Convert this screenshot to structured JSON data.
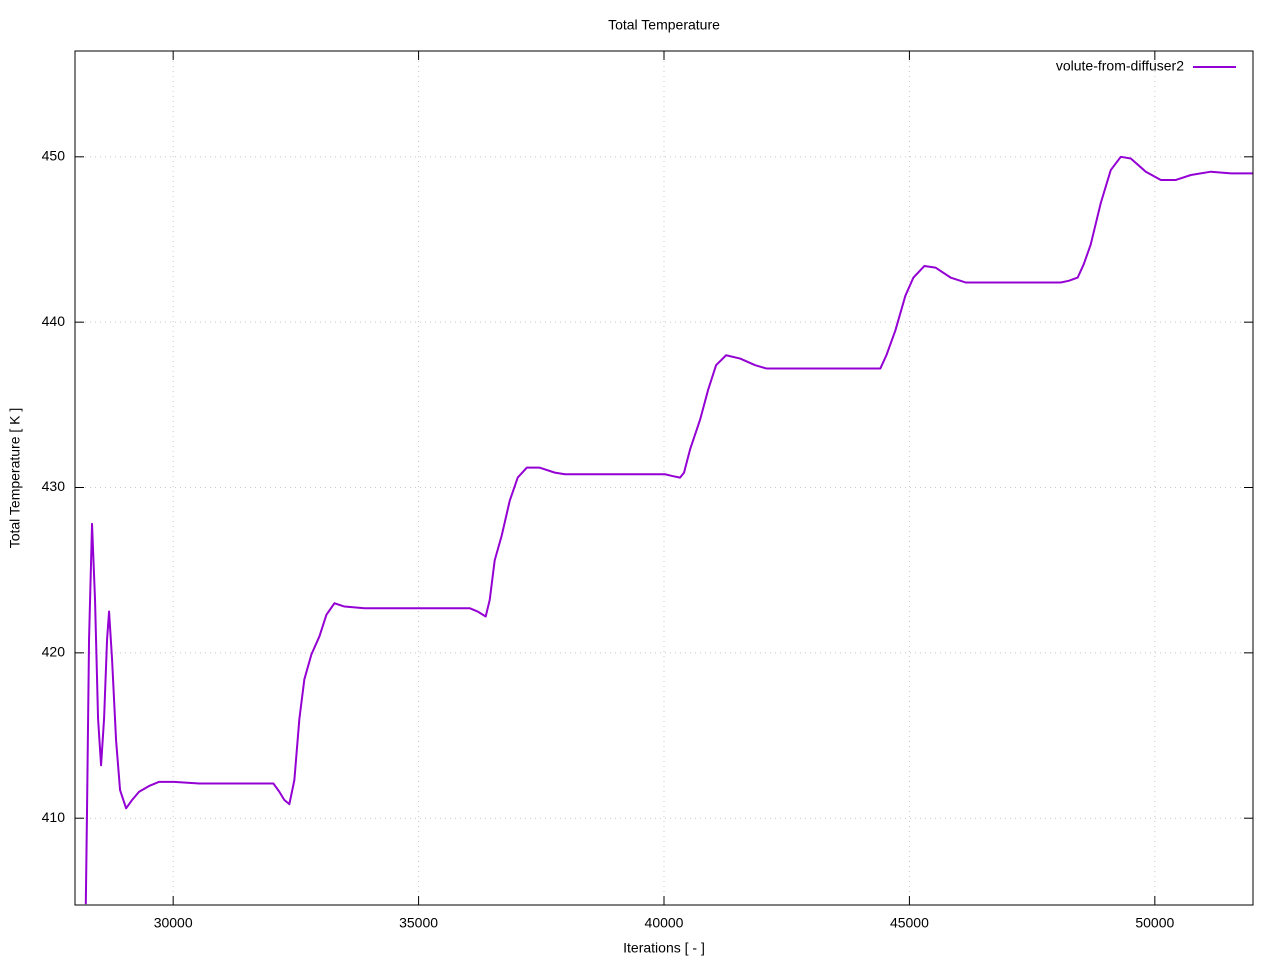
{
  "chart_data": {
    "type": "line",
    "title": "Total Temperature",
    "x_label": "Iterations [ - ]",
    "y_label": "Total Temperature [ K ]",
    "xlim": [
      28000,
      52000
    ],
    "ylim": [
      404.75,
      456.4
    ],
    "xticks": [
      30000,
      35000,
      40000,
      45000,
      50000
    ],
    "yticks": [
      410,
      420,
      430,
      440,
      450
    ],
    "grid": true,
    "legend": "top-right",
    "x": [
      28220,
      28245,
      28286,
      28347,
      28408,
      28470,
      28531,
      28592,
      28653,
      28694,
      28755,
      28837,
      28918,
      29041,
      29163,
      29306,
      29510,
      29714,
      30020,
      30531,
      32041,
      32163,
      32265,
      32367,
      32469,
      32571,
      32673,
      32816,
      32980,
      33122,
      33286,
      33490,
      33898,
      36041,
      36204,
      36367,
      36449,
      36551,
      36694,
      36857,
      37020,
      37204,
      37469,
      37776,
      37980,
      40020,
      40163,
      40327,
      40408,
      40531,
      40735,
      40898,
      41061,
      41265,
      41551,
      41857,
      42082,
      44102,
      44245,
      44408,
      44531,
      44714,
      44918,
      45082,
      45306,
      45531,
      45837,
      46143,
      48082,
      48245,
      48429,
      48551,
      48694,
      48898,
      49102,
      49306,
      49510,
      49816,
      50122,
      50429,
      50735,
      51143,
      51551,
      52000
    ],
    "series": [
      {
        "name": "volute-from-diffuser2",
        "color": "#9400d3",
        "values": [
          404.8,
          410.5,
          420.8,
          427.8,
          423.2,
          416.0,
          413.2,
          416.0,
          420.8,
          422.5,
          419.6,
          414.7,
          411.7,
          410.6,
          411.1,
          411.6,
          411.95,
          412.2,
          412.2,
          412.1,
          412.1,
          411.6,
          411.1,
          410.85,
          412.3,
          416.0,
          418.4,
          419.9,
          421.0,
          422.3,
          423.0,
          422.8,
          422.7,
          422.7,
          422.5,
          422.2,
          423.2,
          425.6,
          427.1,
          429.2,
          430.6,
          431.2,
          431.2,
          430.9,
          430.8,
          430.8,
          430.7,
          430.6,
          430.9,
          432.3,
          434.1,
          435.9,
          437.4,
          438.0,
          437.8,
          437.4,
          437.2,
          437.2,
          437.2,
          437.2,
          438.0,
          439.5,
          441.6,
          442.7,
          443.4,
          443.3,
          442.7,
          442.4,
          442.4,
          442.5,
          442.7,
          443.5,
          444.7,
          447.2,
          449.2,
          450.0,
          449.9,
          449.1,
          448.6,
          448.6,
          448.9,
          449.1,
          449.0,
          449.0
        ]
      }
    ]
  }
}
